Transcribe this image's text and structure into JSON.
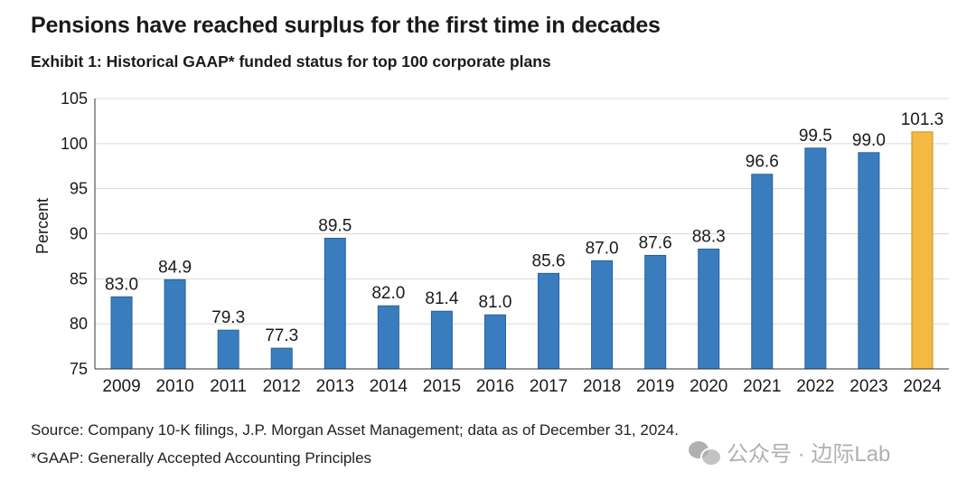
{
  "title": "Pensions have reached surplus for the first time in decades",
  "subtitle": "Exhibit 1: Historical GAAP* funded status for top 100 corporate plans",
  "source": "Source: Company 10-K filings, J.P. Morgan Asset Management; data as of December 31, 2024.",
  "footnote": "*GAAP: Generally Accepted Accounting Principles",
  "watermark": "公众号 · 边际Lab",
  "chart_data": {
    "type": "bar",
    "title": "Exhibit 1: Historical GAAP* funded status for top 100 corporate plans",
    "xlabel": "",
    "ylabel": "Percent",
    "ylim": [
      75,
      105
    ],
    "yticks": [
      75,
      80,
      85,
      90,
      95,
      100,
      105
    ],
    "grid": true,
    "categories": [
      "2009",
      "2010",
      "2011",
      "2012",
      "2013",
      "2014",
      "2015",
      "2016",
      "2017",
      "2018",
      "2019",
      "2020",
      "2021",
      "2022",
      "2023",
      "2024"
    ],
    "values": [
      83.0,
      84.9,
      79.3,
      77.3,
      89.5,
      82.0,
      81.4,
      81.0,
      85.6,
      87.0,
      87.6,
      88.3,
      96.6,
      99.5,
      99.0,
      101.3
    ],
    "labels": [
      "83.0",
      "84.9",
      "79.3",
      "77.3",
      "89.5",
      "82.0",
      "81.4",
      "81.0",
      "85.6",
      "87.0",
      "87.6",
      "88.3",
      "96.6",
      "99.5",
      "99.0",
      "101.3"
    ],
    "colors": {
      "bar": "#3a7dbf",
      "bar_border": "#27609a",
      "highlight": "#f4b942",
      "highlight_border": "#c98d1e",
      "grid": "#d9d9d9",
      "axis": "#333333"
    },
    "highlight_category": "2024"
  }
}
